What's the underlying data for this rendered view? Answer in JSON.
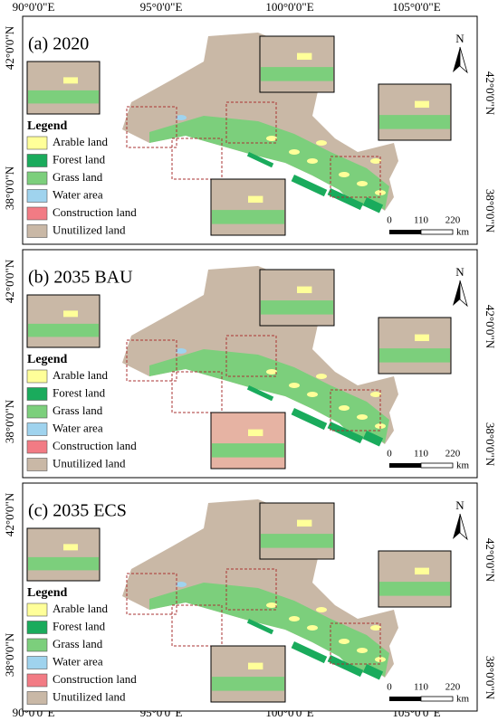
{
  "axes": {
    "top_labels": [
      "90°0'0\"E",
      "95°0'0\"E",
      "100°0'0\"E",
      "105°0'0\"E"
    ],
    "bottom_labels": [
      "90°0'0\"E",
      "95°0'0\"E",
      "100°0'0\"E",
      "105°0'0\"E"
    ],
    "left_labels": [
      "42°0'0\"N",
      "38°0'0\"N"
    ],
    "right_labels": [
      "42°0'0\"N",
      "38°0'0\"N"
    ]
  },
  "panels": [
    {
      "title": "(a) 2020"
    },
    {
      "title": "(b) 2035 BAU"
    },
    {
      "title": "(c) 2035 ECS"
    }
  ],
  "legend": {
    "title": "Legend",
    "items": [
      {
        "label": "Arable land",
        "color": "#ffff99"
      },
      {
        "label": "Forest land",
        "color": "#1aab5c"
      },
      {
        "label": "Grass land",
        "color": "#7ccf7c"
      },
      {
        "label": "Water area",
        "color": "#9fd3ee"
      },
      {
        "label": "Construction land",
        "color": "#f27b84"
      },
      {
        "label": "Unutilized land",
        "color": "#c9b8a6"
      }
    ]
  },
  "scale_bar": {
    "labels": [
      "0",
      "110",
      "220"
    ],
    "unit": "km"
  },
  "north_label": "N"
}
